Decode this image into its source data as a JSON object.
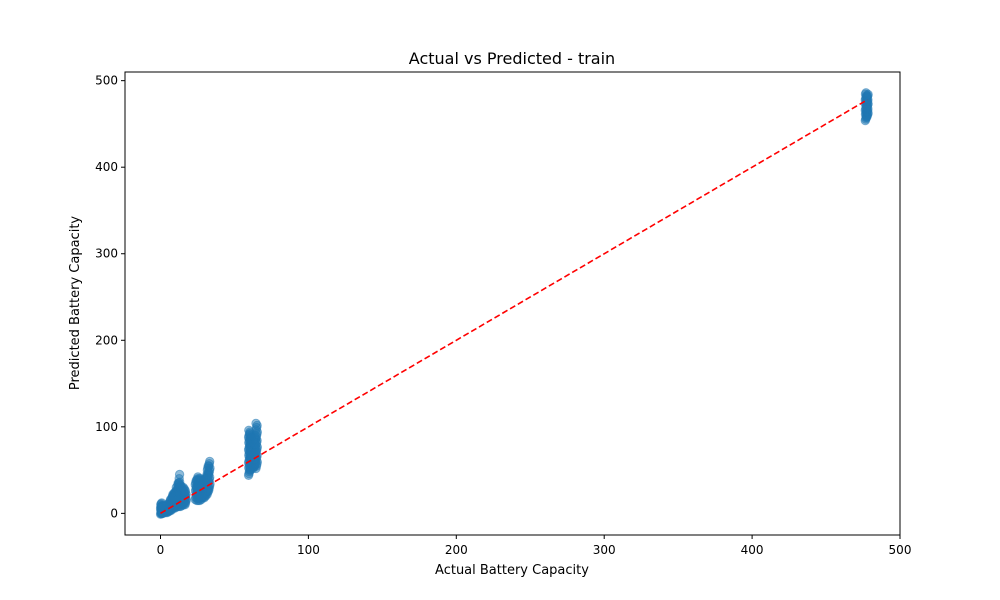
{
  "chart_data": {
    "type": "scatter",
    "title": "Actual vs Predicted - train",
    "xlabel": "Actual Battery Capacity",
    "ylabel": "Predicted Battery Capacity",
    "xlim": [
      -24,
      500
    ],
    "ylim": [
      -25,
      510
    ],
    "xticks": [
      0,
      100,
      200,
      300,
      400,
      500
    ],
    "yticks": [
      0,
      100,
      200,
      300,
      400,
      500
    ],
    "grid": false,
    "colors": {
      "points": "#1f77b4",
      "reference_line": "#ff0000"
    },
    "reference_line": {
      "x": [
        0,
        478
      ],
      "y": [
        0,
        478
      ],
      "style": "dashed"
    },
    "clusters": [
      {
        "x": 0.5,
        "ymin": -1,
        "ymax": 12,
        "count": 14
      },
      {
        "x": 1,
        "ymin": 0,
        "ymax": 9,
        "count": 10
      },
      {
        "x": 1.5,
        "ymin": 0,
        "ymax": 8,
        "count": 8
      },
      {
        "x": 2,
        "ymin": 0,
        "ymax": 8,
        "count": 8
      },
      {
        "x": 3,
        "ymin": 1,
        "ymax": 8,
        "count": 8
      },
      {
        "x": 4,
        "ymin": 1,
        "ymax": 9,
        "count": 8
      },
      {
        "x": 5,
        "ymin": 1,
        "ymax": 10,
        "count": 8
      },
      {
        "x": 6,
        "ymin": 2,
        "ymax": 12,
        "count": 9
      },
      {
        "x": 7,
        "ymin": 3,
        "ymax": 16,
        "count": 9
      },
      {
        "x": 8,
        "ymin": 4,
        "ymax": 22,
        "count": 11
      },
      {
        "x": 9,
        "ymin": 6,
        "ymax": 24,
        "count": 11
      },
      {
        "x": 10,
        "ymin": 6,
        "ymax": 26,
        "count": 11
      },
      {
        "x": 11,
        "ymin": 7,
        "ymax": 30,
        "count": 12
      },
      {
        "x": 12,
        "ymin": 8,
        "ymax": 35,
        "count": 13
      },
      {
        "x": 12.5,
        "ymin": 30,
        "ymax": 45,
        "count": 4
      },
      {
        "x": 13,
        "ymin": 8,
        "ymax": 36,
        "count": 13
      },
      {
        "x": 14,
        "ymin": 8,
        "ymax": 32,
        "count": 12
      },
      {
        "x": 15,
        "ymin": 9,
        "ymax": 30,
        "count": 11
      },
      {
        "x": 16,
        "ymin": 10,
        "ymax": 28,
        "count": 10
      },
      {
        "x": 17,
        "ymin": 10,
        "ymax": 26,
        "count": 9
      },
      {
        "x": 24,
        "ymin": 16,
        "ymax": 38,
        "count": 10
      },
      {
        "x": 25,
        "ymin": 15,
        "ymax": 42,
        "count": 14
      },
      {
        "x": 26,
        "ymin": 15,
        "ymax": 40,
        "count": 13
      },
      {
        "x": 27,
        "ymin": 15,
        "ymax": 40,
        "count": 13
      },
      {
        "x": 28,
        "ymin": 16,
        "ymax": 38,
        "count": 12
      },
      {
        "x": 29,
        "ymin": 18,
        "ymax": 38,
        "count": 11
      },
      {
        "x": 30,
        "ymin": 18,
        "ymax": 40,
        "count": 11
      },
      {
        "x": 31,
        "ymin": 20,
        "ymax": 45,
        "count": 11
      },
      {
        "x": 32,
        "ymin": 22,
        "ymax": 55,
        "count": 14
      },
      {
        "x": 33,
        "ymin": 26,
        "ymax": 60,
        "count": 14
      },
      {
        "x": 60,
        "ymin": 44,
        "ymax": 96,
        "count": 26
      },
      {
        "x": 61,
        "ymin": 50,
        "ymax": 92,
        "count": 22
      },
      {
        "x": 62,
        "ymin": 52,
        "ymax": 88,
        "count": 20
      },
      {
        "x": 63,
        "ymin": 52,
        "ymax": 86,
        "count": 20
      },
      {
        "x": 64,
        "ymin": 54,
        "ymax": 90,
        "count": 20
      },
      {
        "x": 65,
        "ymin": 52,
        "ymax": 104,
        "count": 22
      },
      {
        "x": 477,
        "ymin": 454,
        "ymax": 486,
        "count": 20
      },
      {
        "x": 478,
        "ymin": 458,
        "ymax": 484,
        "count": 18
      }
    ]
  }
}
